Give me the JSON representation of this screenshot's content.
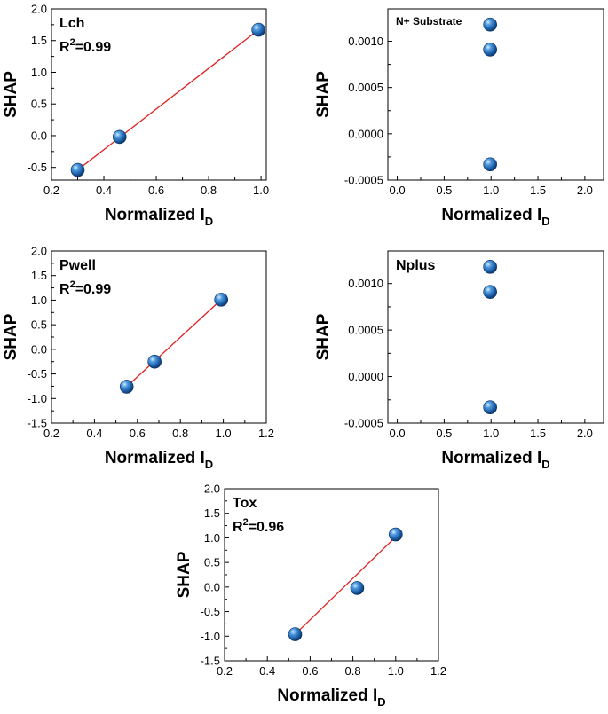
{
  "chart_data": [
    {
      "type": "scatter",
      "title": "Lch",
      "annotation": {
        "r2_prefix": "R",
        "r2_exp": "2",
        "r2_suffix": "=0.99"
      },
      "xlabel": {
        "main": "Normalized I",
        "sub": "D"
      },
      "ylabel": "SHAP",
      "xlim": [
        0.2,
        1.02
      ],
      "ylim": [
        -0.7,
        2.0
      ],
      "xticks": [
        0.2,
        0.4,
        0.6,
        0.8,
        1.0
      ],
      "yticks": [
        -0.5,
        0.0,
        0.5,
        1.0,
        1.5,
        2.0
      ],
      "xtick_labels": [
        "0.2",
        "0.4",
        "0.6",
        "0.8",
        "1.0"
      ],
      "ytick_labels": [
        "-0.5",
        "0.0",
        "0.5",
        "1.0",
        "1.5",
        "2.0"
      ],
      "points": [
        {
          "x": 0.3,
          "y": -0.54
        },
        {
          "x": 0.46,
          "y": -0.02
        },
        {
          "x": 0.99,
          "y": 1.67
        }
      ],
      "fit_line": {
        "x": [
          0.3,
          0.99
        ],
        "y": [
          -0.54,
          1.67
        ]
      },
      "marker_color": "#1f5fa8",
      "line_color": "#e02020"
    },
    {
      "type": "scatter",
      "title": "N+ Substrate",
      "xlabel": {
        "main": "Normalized I",
        "sub": "D"
      },
      "ylabel": "SHAP",
      "xlim": [
        -0.1,
        2.2
      ],
      "ylim": [
        -0.0005,
        0.00135
      ],
      "xticks": [
        0.0,
        0.5,
        1.0,
        1.5,
        2.0
      ],
      "yticks": [
        -0.0005,
        0.0,
        0.0005,
        0.001
      ],
      "xtick_labels": [
        "0.0",
        "0.5",
        "1.0",
        "1.5",
        "2.0"
      ],
      "ytick_labels": [
        "-0.0005",
        "0.0000",
        "0.0005",
        "0.0010"
      ],
      "points": [
        {
          "x": 0.99,
          "y": 0.00118
        },
        {
          "x": 0.99,
          "y": 0.00091
        },
        {
          "x": 0.99,
          "y": -0.00033
        }
      ],
      "marker_color": "#1f5fa8"
    },
    {
      "type": "scatter",
      "title": "Pwell",
      "annotation": {
        "r2_prefix": "R",
        "r2_exp": "2",
        "r2_suffix": "=0.99"
      },
      "xlabel": {
        "main": "Normalized I",
        "sub": "D"
      },
      "ylabel": "SHAP",
      "xlim": [
        0.2,
        1.2
      ],
      "ylim": [
        -1.5,
        2.0
      ],
      "xticks": [
        0.2,
        0.4,
        0.6,
        0.8,
        1.0,
        1.2
      ],
      "yticks": [
        -1.5,
        -1.0,
        -0.5,
        0.0,
        0.5,
        1.0,
        1.5,
        2.0
      ],
      "xtick_labels": [
        "0.2",
        "0.4",
        "0.6",
        "0.8",
        "1.0",
        "1.2"
      ],
      "ytick_labels": [
        "-1.5",
        "-1.0",
        "-0.5",
        "0.0",
        "0.5",
        "1.0",
        "1.5",
        "2.0"
      ],
      "points": [
        {
          "x": 0.55,
          "y": -0.76
        },
        {
          "x": 0.68,
          "y": -0.25
        },
        {
          "x": 0.99,
          "y": 1.01
        }
      ],
      "fit_line": {
        "x": [
          0.55,
          0.99
        ],
        "y": [
          -0.76,
          1.01
        ]
      },
      "marker_color": "#1f5fa8",
      "line_color": "#e02020"
    },
    {
      "type": "scatter",
      "title": "Nplus",
      "xlabel": {
        "main": "Normalized I",
        "sub": "D"
      },
      "ylabel": "SHAP",
      "xlim": [
        -0.1,
        2.2
      ],
      "ylim": [
        -0.0005,
        0.00135
      ],
      "xticks": [
        0.0,
        0.5,
        1.0,
        1.5,
        2.0
      ],
      "yticks": [
        -0.0005,
        0.0,
        0.0005,
        0.001
      ],
      "xtick_labels": [
        "0.0",
        "0.5",
        "1.0",
        "1.5",
        "2.0"
      ],
      "ytick_labels": [
        "-0.0005",
        "0.0000",
        "0.0005",
        "0.0010"
      ],
      "points": [
        {
          "x": 0.99,
          "y": 0.00118
        },
        {
          "x": 0.99,
          "y": 0.00091
        },
        {
          "x": 0.99,
          "y": -0.00033
        }
      ],
      "marker_color": "#1f5fa8"
    },
    {
      "type": "scatter",
      "title": "Tox",
      "annotation": {
        "r2_prefix": "R",
        "r2_exp": "2",
        "r2_suffix": "=0.96"
      },
      "xlabel": {
        "main": "Normalized I",
        "sub": "D"
      },
      "ylabel": "SHAP",
      "xlim": [
        0.2,
        1.2
      ],
      "ylim": [
        -1.5,
        2.0
      ],
      "xticks": [
        0.2,
        0.4,
        0.6,
        0.8,
        1.0,
        1.2
      ],
      "yticks": [
        -1.5,
        -1.0,
        -0.5,
        0.0,
        0.5,
        1.0,
        1.5,
        2.0
      ],
      "xtick_labels": [
        "0.2",
        "0.4",
        "0.6",
        "0.8",
        "1.0",
        "1.2"
      ],
      "ytick_labels": [
        "-1.5",
        "-1.0",
        "-0.5",
        "0.0",
        "0.5",
        "1.0",
        "1.5",
        "2.0"
      ],
      "points": [
        {
          "x": 0.53,
          "y": -0.96
        },
        {
          "x": 0.82,
          "y": -0.02
        },
        {
          "x": 1.0,
          "y": 1.07
        }
      ],
      "fit_line": {
        "x": [
          0.53,
          1.0
        ],
        "y": [
          -0.96,
          1.02
        ]
      },
      "marker_color": "#1f5fa8",
      "line_color": "#e02020"
    }
  ]
}
